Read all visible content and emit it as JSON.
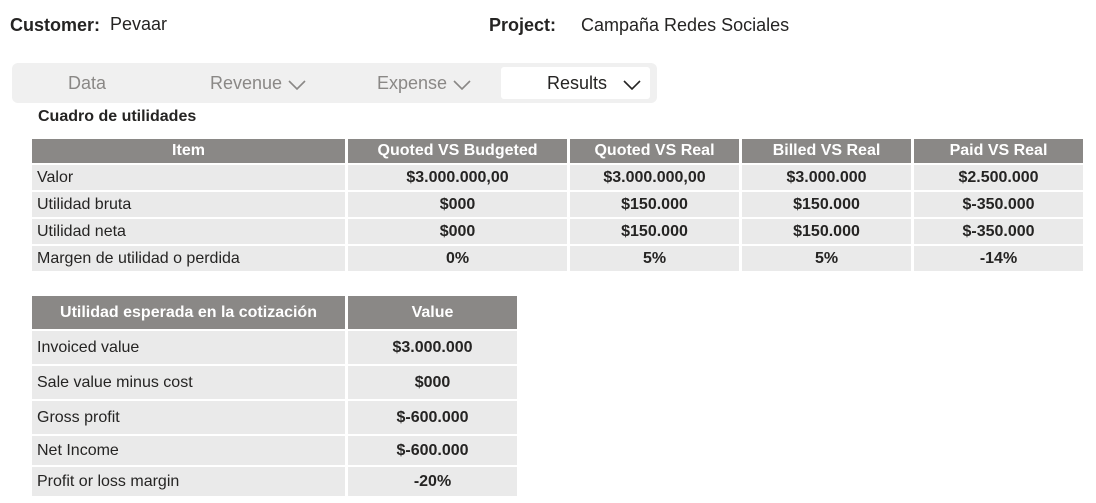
{
  "header": {
    "customer_label": "Customer:",
    "customer_value": "Pevaar",
    "project_label": "Project:",
    "project_value": "Campaña Redes Sociales"
  },
  "tabs": [
    {
      "label": "Data",
      "has_dropdown": false,
      "active": false
    },
    {
      "label": "Revenue",
      "has_dropdown": true,
      "active": false
    },
    {
      "label": "Expense",
      "has_dropdown": true,
      "active": false
    },
    {
      "label": "Results",
      "has_dropdown": true,
      "active": true
    }
  ],
  "section_title": "Cuadro de utilidades",
  "utilities_table": {
    "columns": [
      "Item",
      "Quoted VS Budgeted",
      "Quoted VS Real",
      "Billed VS Real",
      "Paid VS Real"
    ],
    "rows": [
      [
        "Valor",
        "$3.000.000,00",
        "$3.000.000,00",
        "$3.000.000",
        "$2.500.000"
      ],
      [
        "Utilidad bruta",
        "$000",
        "$150.000",
        "$150.000",
        "$-350.000"
      ],
      [
        "Utilidad neta",
        "$000",
        "$150.000",
        "$150.000",
        "$-350.000"
      ],
      [
        "Margen de utilidad o perdida",
        "0%",
        "5%",
        "5%",
        "-14%"
      ]
    ]
  },
  "expected_table": {
    "columns": [
      "Utilidad esperada en la cotización",
      "Value"
    ],
    "rows": [
      [
        "Invoiced value",
        "$3.000.000"
      ],
      [
        "Sale value minus cost",
        "$000"
      ],
      [
        "Gross profit",
        "$-600.000"
      ],
      [
        "Net Income",
        "$-600.000"
      ],
      [
        "Profit or loss margin",
        "-20%"
      ]
    ]
  },
  "colors": {
    "header_bg": "#8a8886",
    "cell_bg": "#eaeaea",
    "tabbar_bg": "#f0f0f0",
    "text": "#252423",
    "muted_text": "#8a8886"
  }
}
